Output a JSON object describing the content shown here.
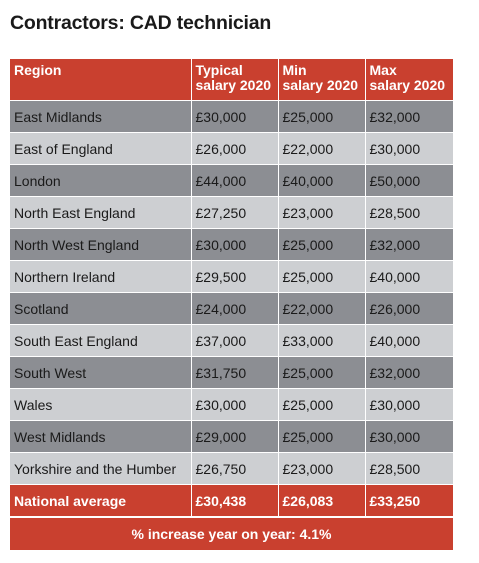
{
  "title": "Contractors: CAD technician",
  "table": {
    "headers": [
      [
        "Region"
      ],
      [
        "Typical",
        "salary 2020"
      ],
      [
        "Min",
        "salary 2020"
      ],
      [
        "Max",
        "salary 2020"
      ]
    ],
    "rows": [
      [
        "East Midlands",
        "£30,000",
        "£25,000",
        "£32,000"
      ],
      [
        "East of England",
        "£26,000",
        "£22,000",
        "£30,000"
      ],
      [
        "London",
        "£44,000",
        "£40,000",
        "£50,000"
      ],
      [
        "North East England",
        "£27,250",
        "£23,000",
        "£28,500"
      ],
      [
        "North West England",
        "£30,000",
        "£25,000",
        "£32,000"
      ],
      [
        "Northern Ireland",
        "£29,500",
        "£25,000",
        "£40,000"
      ],
      [
        "Scotland",
        "£24,000",
        "£22,000",
        "£26,000"
      ],
      [
        "South East England",
        "£37,000",
        "£33,000",
        "£40,000"
      ],
      [
        "South West",
        "£31,750",
        "£25,000",
        "£32,000"
      ],
      [
        "Wales",
        "£30,000",
        "£25,000",
        "£30,000"
      ],
      [
        "West Midlands",
        "£29,000",
        "£25,000",
        "£30,000"
      ],
      [
        "Yorkshire and the Humber",
        "£26,750",
        "£23,000",
        "£28,500"
      ]
    ],
    "average": [
      "National average",
      "£30,438",
      "£26,083",
      "£33,250"
    ],
    "footer": "% increase year on year: 4.1%"
  },
  "colors": {
    "accent_red": "#c9402f",
    "row_dark": "#8c8e93",
    "row_light": "#cdcfd2"
  }
}
